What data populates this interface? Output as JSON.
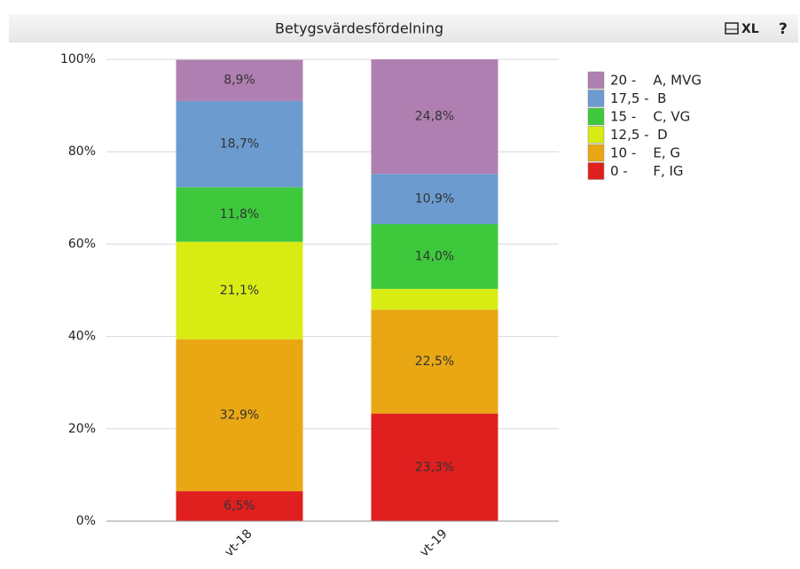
{
  "chart_data": {
    "type": "stacked_bar",
    "title": "Betygsvärdesfördelning",
    "toolbar": [
      "XL",
      "?"
    ],
    "categories": [
      "vt-18",
      "vt-19"
    ],
    "series": [
      {
        "name": "0 -      F, IG",
        "color": "#e01f1f",
        "values": [
          6.5,
          23.3
        ],
        "value_labels": [
          "6,5%",
          "23,3%"
        ]
      },
      {
        "name": "10 -    E, G",
        "color": "#e9a713",
        "values": [
          32.9,
          22.5
        ],
        "value_labels": [
          "32,9%",
          "22,5%"
        ]
      },
      {
        "name": "12,5 -  D",
        "color": "#d8ec14",
        "values": [
          21.1,
          4.5
        ],
        "value_labels": [
          "21,1%",
          null
        ]
      },
      {
        "name": "15 -    C, VG",
        "color": "#3ec93d",
        "values": [
          11.8,
          14.0
        ],
        "value_labels": [
          "11,8%",
          "14,0%"
        ]
      },
      {
        "name": "17,5 -  B",
        "color": "#6c9bd0",
        "values": [
          18.7,
          10.9
        ],
        "value_labels": [
          "18,7%",
          "10,9%"
        ]
      },
      {
        "name": "20 -    A, MVG",
        "color": "#b07fb1",
        "values": [
          8.9,
          24.8
        ],
        "value_labels": [
          "8,9%",
          "24,8%"
        ]
      }
    ],
    "ylim": [
      0,
      100
    ],
    "yticks": [
      {
        "value": 0,
        "label": "0%"
      },
      {
        "value": 20,
        "label": "20%"
      },
      {
        "value": 40,
        "label": "40%"
      },
      {
        "value": 60,
        "label": "60%"
      },
      {
        "value": 80,
        "label": "80%"
      },
      {
        "value": 100,
        "label": "100%"
      }
    ],
    "grid": true
  }
}
